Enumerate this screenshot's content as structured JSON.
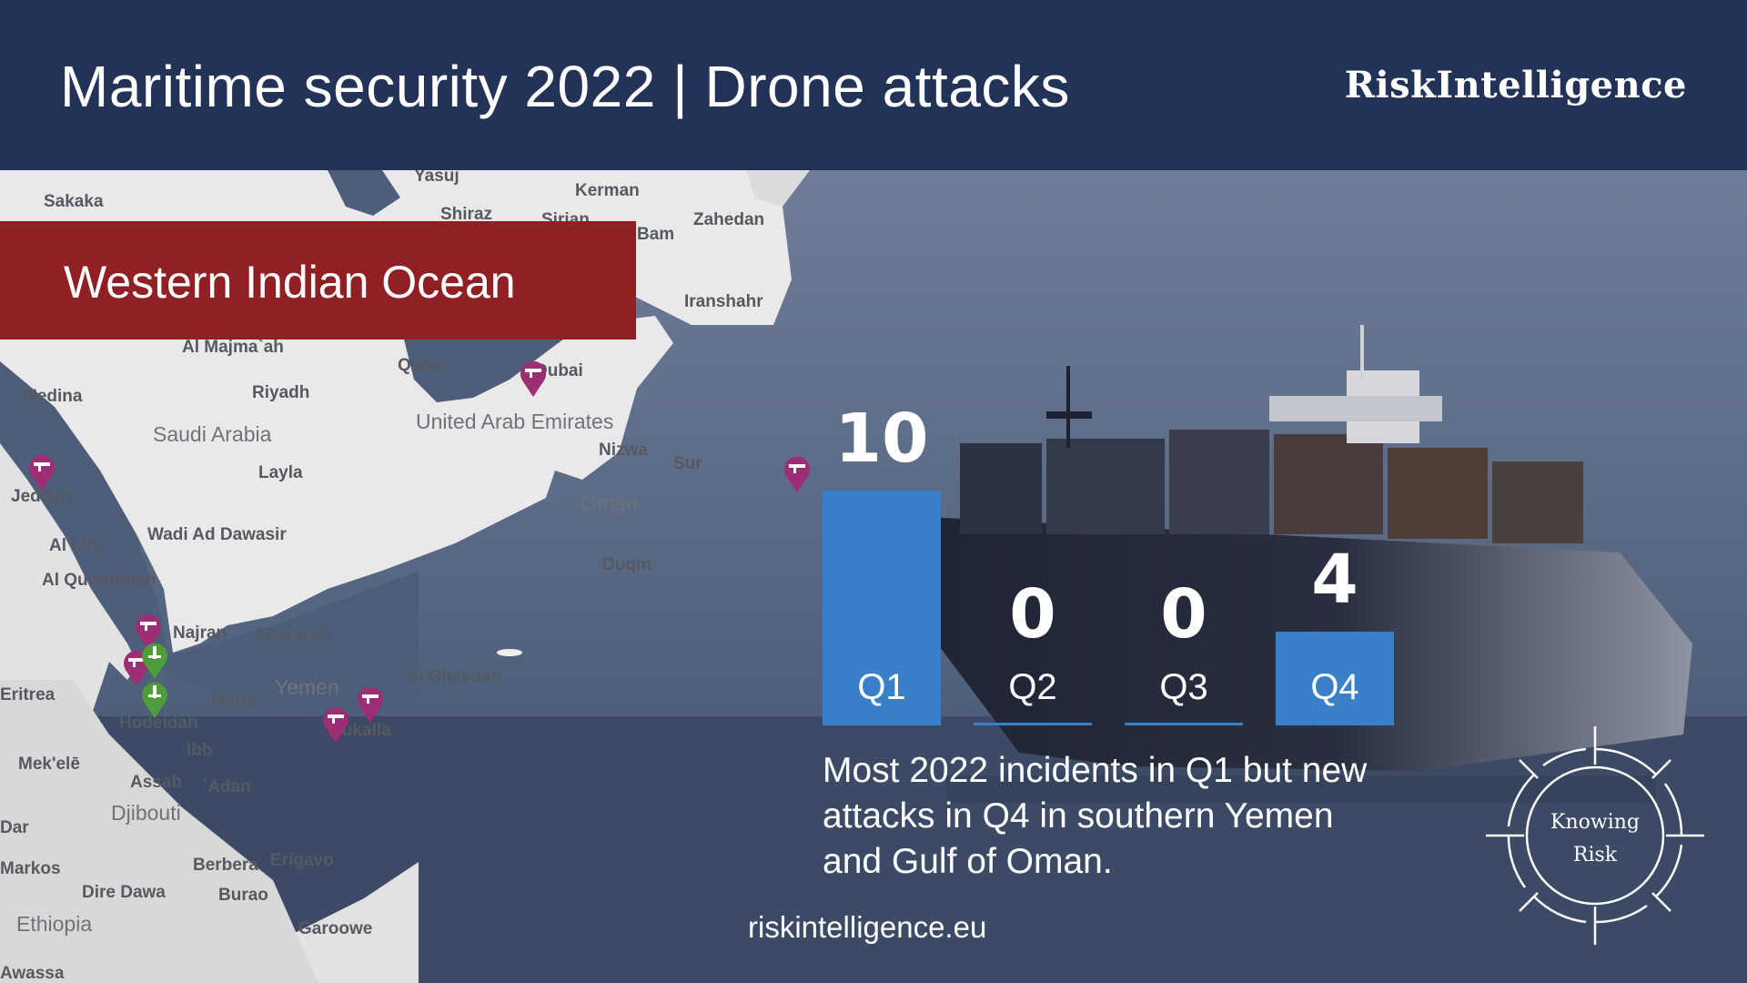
{
  "header": {
    "title": "Maritime security 2022 | Drone attacks",
    "brand": "RiskIntelligence"
  },
  "region": "Western Indian Ocean",
  "map": {
    "places": [
      "Sakaka",
      "Yasuj",
      "Kerman",
      "Shiraz",
      "Sirjan",
      "Bam",
      "Zahedan",
      "Iranshahr",
      "Al Majma`ah",
      "Qatar",
      "Dubai",
      "Medina",
      "Riyadh",
      "Saudi Arabia",
      "United Arab Emirates",
      "Nizwa",
      "Sur",
      "Layla",
      "Jeddah",
      "Oman",
      "Al Lith",
      "Wadi Ad Dawasir",
      "Duqm",
      "Al Qunfudhah",
      "Najran",
      "Sharurah",
      "Al Ghaydah",
      "Eritrea",
      "Yemen",
      "Marib",
      "Mukalla",
      "Hodeidah",
      "Ibb",
      "Mek'elē",
      "Assab",
      "`Adan",
      "Djibouti",
      "Dar",
      "Berbera",
      "Erigavo",
      "Markos",
      "Dire Dawa",
      "Burao",
      "Ethiopia",
      "Garoowe",
      "Awassa"
    ],
    "country_labels": [
      "Saudi Arabia",
      "United Arab Emirates",
      "Oman",
      "Yemen",
      "Djibouti",
      "Ethiopia"
    ],
    "drone_markers": 7,
    "other_markers": 2
  },
  "chart_data": {
    "type": "bar",
    "title": "Maritime security 2022 | Drone attacks",
    "categories": [
      "Q1",
      "Q2",
      "Q3",
      "Q4"
    ],
    "values": [
      10,
      0,
      0,
      4
    ],
    "value_labels": [
      "10",
      "0",
      "0",
      "4"
    ],
    "ylim": [
      0,
      10
    ],
    "bar_color": "#3a80c8"
  },
  "summary": "Most 2022 incidents in Q1 but new attacks in Q4 in southern Yemen and Gulf of Oman.",
  "website": "riskintelligence.eu",
  "logo": {
    "line1": "Knowing",
    "line2": "Risk"
  },
  "colors": {
    "header_bg": "#233257",
    "banner_red": "#912025",
    "bar_blue": "#3a80c8",
    "marker_purple": "#9c2f73",
    "marker_green": "#4f9c3a"
  }
}
